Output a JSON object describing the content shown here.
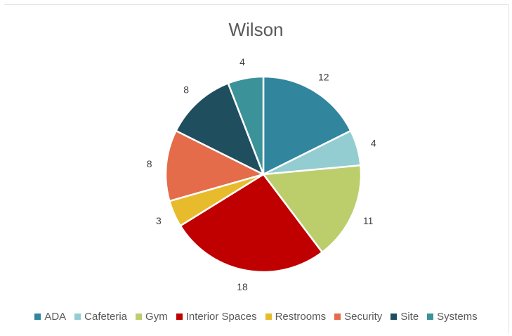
{
  "chart_data": {
    "type": "pie",
    "title": "Wilson",
    "categories": [
      "ADA",
      "Cafeteria",
      "Gym",
      "Interior Spaces",
      "Restrooms",
      "Security",
      "Site",
      "Systems"
    ],
    "values": [
      12,
      4,
      11,
      18,
      3,
      8,
      8,
      4
    ],
    "colors": [
      "#31859c",
      "#93cdd1",
      "#bcce6b",
      "#c00000",
      "#e7bb2c",
      "#e46c4a",
      "#1f4e5f",
      "#3b9299"
    ],
    "legend_position": "bottom",
    "start_angle": "12 o'clock, clockwise"
  }
}
